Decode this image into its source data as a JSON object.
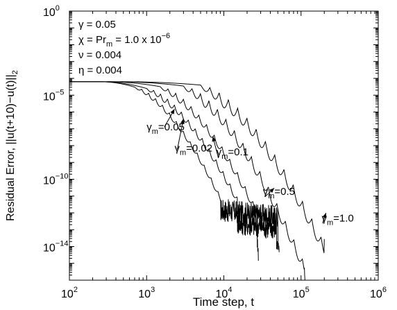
{
  "chart_data": {
    "type": "line",
    "xlabel": "Time step, t",
    "ylabel": "Residual Error, ||u(t+10)−u(t)||",
    "ylabel_sub": "2",
    "x_scale": "log",
    "y_scale": "log",
    "xlim": [
      100,
      1000000
    ],
    "ylim": [
      1e-16,
      1
    ],
    "grid": false,
    "x_ticks": [
      {
        "value": 100,
        "base": "10",
        "exp": "2"
      },
      {
        "value": 1000,
        "base": "10",
        "exp": "3"
      },
      {
        "value": 10000,
        "base": "10",
        "exp": "4"
      },
      {
        "value": 100000,
        "base": "10",
        "exp": "5"
      },
      {
        "value": 1000000,
        "base": "10",
        "exp": "6"
      }
    ],
    "y_ticks": [
      {
        "value": 1,
        "base": "10",
        "exp": "0"
      },
      {
        "value": 1e-05,
        "base": "10",
        "exp": "−5"
      },
      {
        "value": 1e-10,
        "base": "10",
        "exp": "−10"
      },
      {
        "value": 1e-14,
        "base": "10",
        "exp": "−14"
      }
    ],
    "parameters": [
      {
        "pre": "γ = 0.05",
        "sub": "",
        "post": "",
        "sup": ""
      },
      {
        "pre": "χ = Pr",
        "sub": "m",
        "post": " = 1.0 x 10",
        "sup": "−6"
      },
      {
        "pre": "ν = 0.004",
        "sub": "",
        "post": "",
        "sup": ""
      },
      {
        "pre": "η = 0.004",
        "sub": "",
        "post": "",
        "sup": ""
      }
    ],
    "series": [
      {
        "label_pre": "γ",
        "label_sub": "m",
        "label_post": "=0.02",
        "label_at": [
          2300,
          4.5e-09
        ],
        "arrow_tail": [
          2500,
          6e-09
        ],
        "arrow_head": [
          3000,
          4e-07
        ],
        "decay": {
          "plateau": 6.3e-05,
          "t0": 250,
          "t1": 700,
          "t1_val": 3e-05,
          "end": 9000,
          "end_val": 1e-11,
          "osc_period": 0.09,
          "osc_amp": 0.25,
          "noise_floor": 1.5e-12,
          "noise_end": 50000,
          "drop_end": 52000
        },
        "points": []
      },
      {
        "label_pre": "γ",
        "label_sub": "m",
        "label_post": "=0.05",
        "label_at": [
          1000,
          8e-08
        ],
        "arrow_tail": [
          1700,
          1.3e-07
        ],
        "arrow_head": [
          2300,
          1.5e-06
        ],
        "decay": {
          "plateau": 6.3e-05,
          "t0": 250,
          "t1": 1000,
          "t1_val": 2.5e-05,
          "end": 15000,
          "end_val": 8e-12,
          "osc_period": 0.09,
          "osc_amp": 0.35,
          "noise_floor": 2.5e-13,
          "noise_end": 48000,
          "drop_end": 50000
        },
        "points": []
      },
      {
        "label_pre": "γ",
        "label_sub": "m",
        "label_post": "=0.1",
        "label_at": [
          8000,
          2.6e-09
        ],
        "arrow_tail": [
          8500,
          1.8e-09
        ],
        "arrow_head": [
          7200,
          3.5e-08
        ],
        "decay": {
          "plateau": 6.3e-05,
          "t0": 300,
          "t1": 1500,
          "t1_val": 3.2e-05,
          "end": 25000,
          "end_val": 3e-12,
          "osc_period": 0.1,
          "osc_amp": 0.4,
          "noise_floor": 0,
          "noise_end": 0,
          "drop_end": 28000
        },
        "points": []
      },
      {
        "label_pre": "γ",
        "label_sub": "m",
        "label_post": "=0.5",
        "label_at": [
          32000,
          1.2e-11
        ],
        "arrow_tail": [
          34000,
          9e-12
        ],
        "arrow_head": [
          45000,
          3e-11
        ],
        "decay": {
          "plateau": 6.3e-05,
          "t0": 400,
          "t1": 3000,
          "t1_val": 3.5e-05,
          "end": 110000,
          "end_val": 1e-15,
          "osc_period": 0.11,
          "osc_amp": 0.6,
          "noise_floor": 0,
          "noise_end": 0,
          "drop_end": 115000
        },
        "points": []
      },
      {
        "label_pre": "γ",
        "label_sub": "m",
        "label_post": "=1.0",
        "label_at": [
          185000,
          3e-13
        ],
        "arrow_tail": [
          190000,
          2.4e-13
        ],
        "arrow_head": [
          210000,
          1e-12
        ],
        "decay": {
          "plateau": 6.3e-05,
          "t0": 500,
          "t1": 5000,
          "t1_val": 4e-05,
          "end": 200000,
          "end_val": 1.5e-14,
          "osc_period": 0.12,
          "osc_amp": 0.7,
          "noise_floor": 0,
          "noise_end": 0,
          "drop_end": 200000
        },
        "points": []
      }
    ]
  }
}
